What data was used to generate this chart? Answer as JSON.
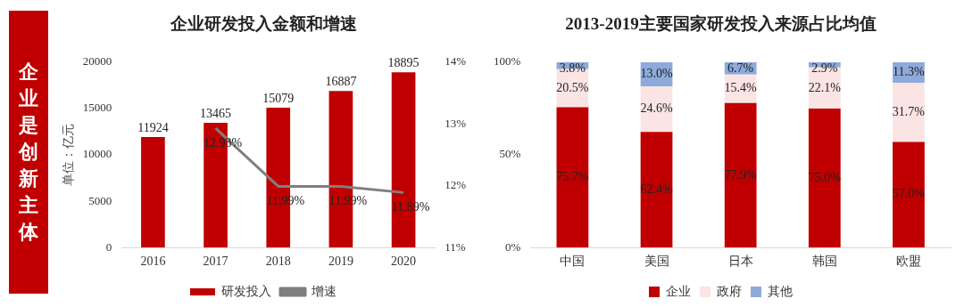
{
  "chart_data": [
    {
      "type": "bar",
      "title": "企业研发投入金额和增速",
      "ylabel": "单位：亿元",
      "annotations": [
        "企业是创新主体"
      ],
      "categories": [
        "2016",
        "2017",
        "2018",
        "2019",
        "2020"
      ],
      "series": [
        {
          "name": "研发投入",
          "color": "#c00000",
          "values": [
            11924,
            13465,
            15079,
            16887,
            18895
          ],
          "value_labels": [
            "11924",
            "13465",
            "15079",
            "16887",
            "18895"
          ]
        },
        {
          "name": "增速",
          "type": "line",
          "axis": "y2",
          "color": "#7f7f7f",
          "values": [
            null,
            12.93,
            11.99,
            11.99,
            11.89
          ],
          "value_labels": [
            null,
            "12.93%",
            "11.99%",
            "11.99%",
            "11.89%"
          ]
        }
      ],
      "ylim": [
        0,
        20000
      ],
      "yticks": [
        0,
        5000,
        10000,
        15000,
        20000
      ],
      "y2lim": [
        11,
        14
      ],
      "y2ticks": [
        {
          "value": 11,
          "label": "11%"
        },
        {
          "value": 12,
          "label": "12%"
        },
        {
          "value": 13,
          "label": "13%"
        },
        {
          "value": 14,
          "label": "14%"
        }
      ],
      "marker": "none",
      "legend": "bottom"
    },
    {
      "type": "bar",
      "stacked": true,
      "title": "2013-2019主要国家研发投入来源占比均值",
      "categories": [
        "中国",
        "美国",
        "日本",
        "韩国",
        "欧盟"
      ],
      "series": [
        {
          "name": "企业",
          "color": "#c00000",
          "values": [
            75.7,
            62.4,
            77.9,
            75.0,
            57.0
          ],
          "value_labels": [
            "75.7%",
            "62.4%",
            "77.9%",
            "75.0%",
            "57.0%"
          ]
        },
        {
          "name": "政府",
          "color": "#fbe4e4",
          "values": [
            20.5,
            24.6,
            15.4,
            22.1,
            31.7
          ],
          "value_labels": [
            "20.5%",
            "24.6%",
            "15.4%",
            "22.1%",
            "31.7%"
          ]
        },
        {
          "name": "其他",
          "color": "#8eaadb",
          "values": [
            3.8,
            13.0,
            6.7,
            2.9,
            11.3
          ],
          "value_labels": [
            "3.8%",
            "13.0%",
            "6.7%",
            "2.9%",
            "11.3%"
          ]
        }
      ],
      "ylim": [
        0,
        100
      ],
      "yticks": [
        {
          "value": 0,
          "label": "0%"
        },
        {
          "value": 50,
          "label": "50%"
        },
        {
          "value": 100,
          "label": "100%"
        }
      ],
      "legend": "bottom"
    }
  ]
}
